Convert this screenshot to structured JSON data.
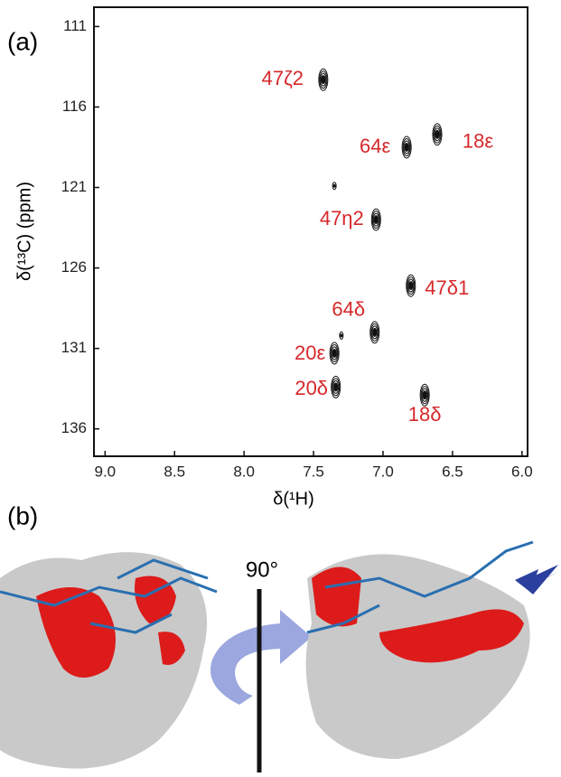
{
  "panels": {
    "a": "(a)",
    "b": "(b)"
  },
  "chart_data": {
    "type": "scatter",
    "x_label": "δ(¹H)",
    "y_label": "δ(¹³C) (ppm)",
    "xlim": [
      9.08,
      5.96
    ],
    "ylim": [
      137.7,
      109.8
    ],
    "xticks": [
      {
        "value": 9,
        "label": "9.0"
      },
      {
        "value": 8.5,
        "label": "8.5"
      },
      {
        "value": 8,
        "label": "8.0"
      },
      {
        "value": 7.5,
        "label": "7.5"
      },
      {
        "value": 7,
        "label": "7.0"
      },
      {
        "value": 6.5,
        "label": "6.5"
      },
      {
        "value": 6,
        "label": "6.0"
      }
    ],
    "yticks": [
      111,
      116,
      121,
      126,
      131,
      136
    ],
    "color": "#111111",
    "label_color": "#d6282b",
    "points": [
      {
        "x": 7.43,
        "y": 114.3,
        "label": "47ζ2"
      },
      {
        "x": 6.83,
        "y": 118.5,
        "label": "64ε"
      },
      {
        "x": 6.61,
        "y": 117.7,
        "label": "18ε"
      },
      {
        "x": 7.35,
        "y": 120.9
      },
      {
        "x": 7.05,
        "y": 123.0,
        "label": "47η2"
      },
      {
        "x": 6.8,
        "y": 127.1,
        "label": "47δ1"
      },
      {
        "x": 7.06,
        "y": 130.0,
        "label": "64δ"
      },
      {
        "x": 7.35,
        "y": 131.3,
        "label": "20ε"
      },
      {
        "x": 7.3,
        "y": 130.2
      },
      {
        "x": 7.34,
        "y": 133.4,
        "label": "20δ"
      },
      {
        "x": 6.7,
        "y": 133.9,
        "label": "18δ"
      }
    ]
  },
  "rotation_label": "90°"
}
